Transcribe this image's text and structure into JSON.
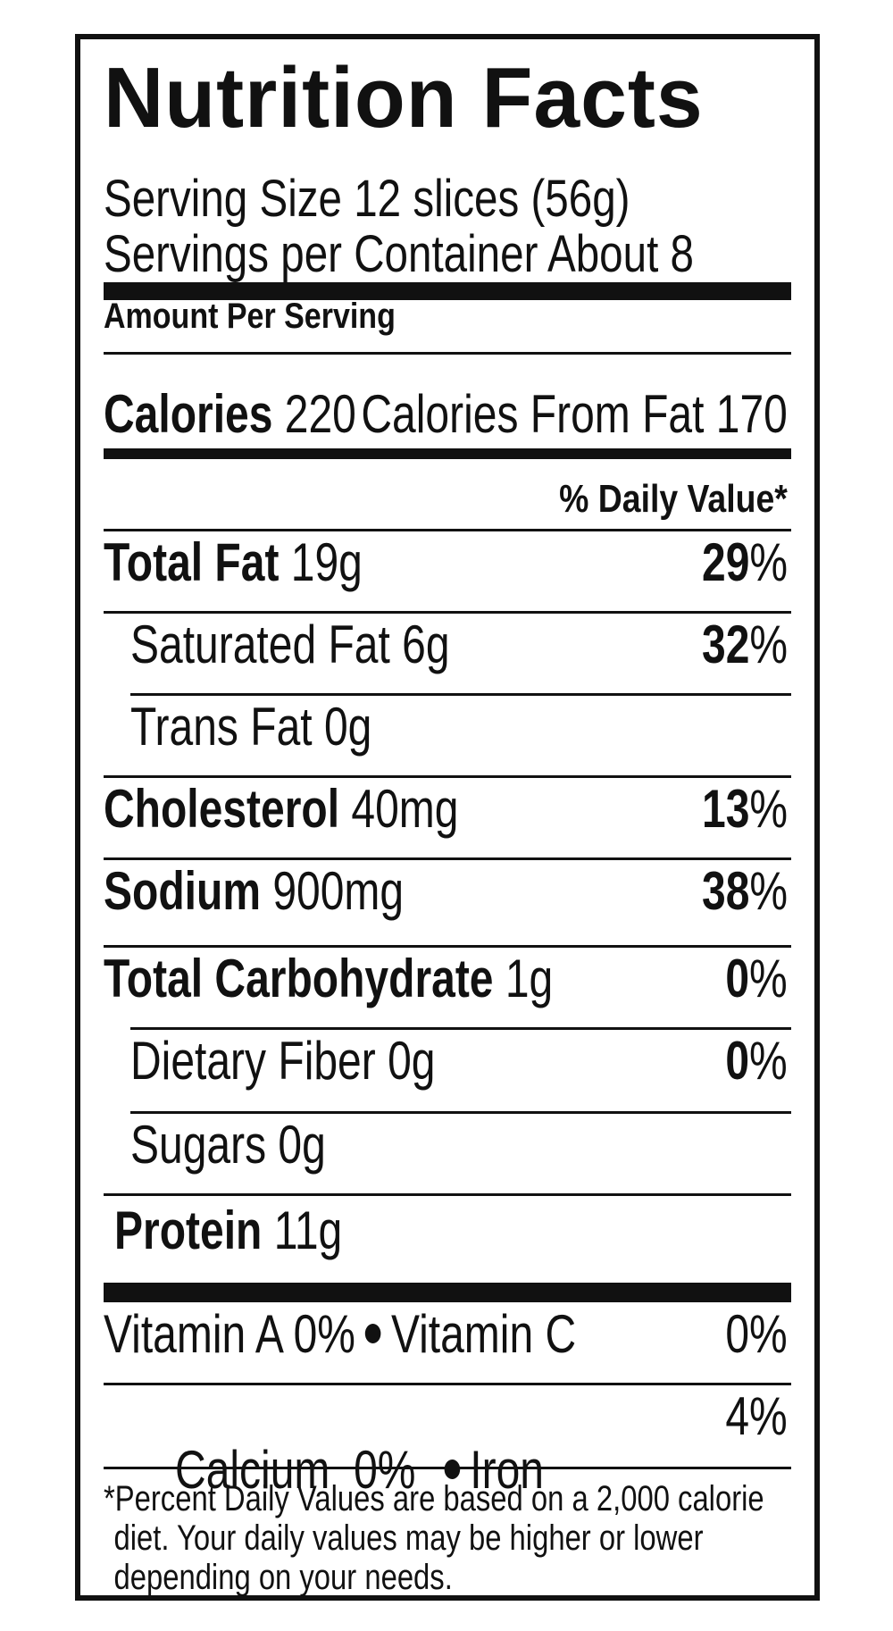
{
  "title": "Nutrition Facts",
  "serving_size": "Serving Size 12 slices (56g)",
  "servings_per_container": "Servings per Container About 8",
  "amount_per_serving": "Amount Per Serving",
  "calories": {
    "label": "Calories",
    "value": "220",
    "from_fat_label": "Calories From Fat",
    "from_fat_value": "170"
  },
  "daily_value_header": "% Daily Value*",
  "nutrients": {
    "total_fat": {
      "label": "Total Fat",
      "amount": "19g",
      "dv_num": "29",
      "dv_sign": "%"
    },
    "saturated_fat": {
      "label": "Saturated Fat",
      "amount": "6g",
      "dv_num": "32",
      "dv_sign": "%"
    },
    "trans_fat": {
      "label": "Trans Fat",
      "amount": "0g"
    },
    "cholesterol": {
      "label": "Cholesterol",
      "amount": "40mg",
      "dv_num": "13",
      "dv_sign": "%"
    },
    "sodium": {
      "label": "Sodium",
      "amount": "900mg",
      "dv_num": "38",
      "dv_sign": "%"
    },
    "total_carbohydrate": {
      "label": "Total Carbohydrate",
      "amount": "1g",
      "dv_num": "0",
      "dv_sign": "%"
    },
    "dietary_fiber": {
      "label": "Dietary Fiber",
      "amount": "0g",
      "dv_num": "0",
      "dv_sign": "%"
    },
    "sugars": {
      "label": "Sugars",
      "amount": "0g"
    },
    "protein": {
      "label": "Protein",
      "amount": "11g"
    }
  },
  "vitamins": {
    "vitamin_a": "Vitamin A 0%",
    "vitamin_c_label": "Vitamin C",
    "vitamin_c_value": "0%",
    "calcium": "Calcium  0%",
    "iron_label": "Iron",
    "iron_value": "4%"
  },
  "footnote": [
    "*Percent Daily Values are based on a 2,000 calorie",
    "diet. Your daily values may be higher or lower",
    "depending on your needs."
  ]
}
